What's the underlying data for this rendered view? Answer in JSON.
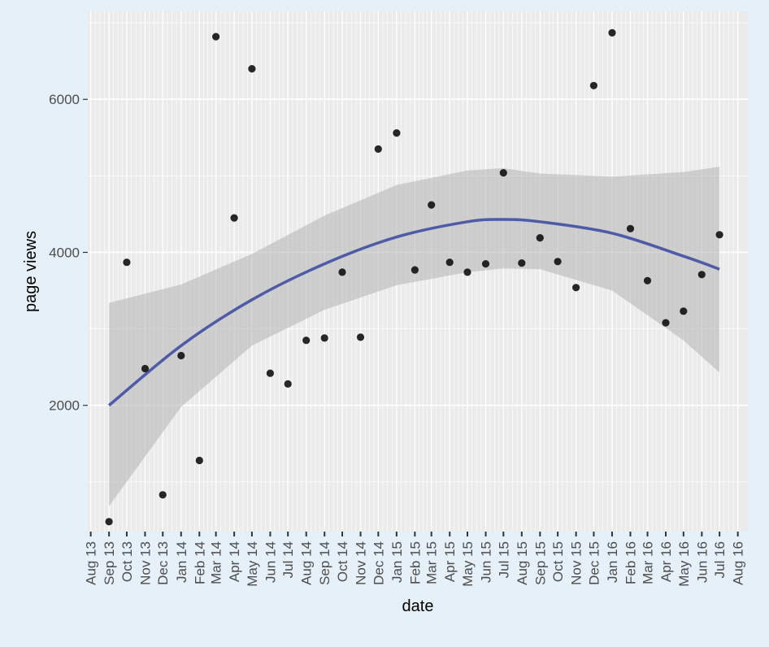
{
  "chart_data": {
    "type": "scatter",
    "title": "",
    "xlabel": "date",
    "ylabel": "page views",
    "x_ticks": [
      "Aug 13",
      "Sep 13",
      "Oct 13",
      "Nov 13",
      "Dec 13",
      "Jan 14",
      "Feb 14",
      "Mar 14",
      "Apr 14",
      "May 14",
      "Jun 14",
      "Jul 14",
      "Aug 14",
      "Sep 14",
      "Oct 14",
      "Nov 14",
      "Dec 14",
      "Jan 15",
      "Feb 15",
      "Mar 15",
      "Apr 15",
      "May 15",
      "Jun 15",
      "Jul 15",
      "Aug 15",
      "Sep 15",
      "Oct 15",
      "Nov 15",
      "Dec 15",
      "Jan 16",
      "Feb 16",
      "Mar 16",
      "Apr 16",
      "May 16",
      "Jun 16",
      "Jul 16",
      "Aug 16"
    ],
    "x_tick_dates": [
      "2013-08-01",
      "2013-09-01",
      "2013-10-01",
      "2013-11-01",
      "2013-12-01",
      "2014-01-01",
      "2014-02-01",
      "2014-03-01",
      "2014-04-01",
      "2014-05-01",
      "2014-06-01",
      "2014-07-01",
      "2014-08-01",
      "2014-09-01",
      "2014-10-01",
      "2014-11-01",
      "2014-12-01",
      "2015-01-01",
      "2015-02-01",
      "2015-03-01",
      "2015-04-01",
      "2015-05-01",
      "2015-06-01",
      "2015-07-01",
      "2015-08-01",
      "2015-09-01",
      "2015-10-01",
      "2015-11-01",
      "2015-12-01",
      "2016-01-01",
      "2016-02-01",
      "2016-03-01",
      "2016-04-01",
      "2016-05-01",
      "2016-06-01",
      "2016-07-01",
      "2016-08-01"
    ],
    "y_ticks": [
      2000,
      4000,
      6000
    ],
    "xlim": [
      "2013-07-27",
      "2016-08-18"
    ],
    "ylim": [
      350,
      7150
    ],
    "grid": true,
    "points": [
      {
        "x": "2013-09-01",
        "y": 480
      },
      {
        "x": "2013-10-01",
        "y": 3870
      },
      {
        "x": "2013-11-01",
        "y": 2480
      },
      {
        "x": "2013-12-01",
        "y": 830
      },
      {
        "x": "2014-01-01",
        "y": 2650
      },
      {
        "x": "2014-02-01",
        "y": 1280
      },
      {
        "x": "2014-03-01",
        "y": 6820
      },
      {
        "x": "2014-04-01",
        "y": 4450
      },
      {
        "x": "2014-05-01",
        "y": 6400
      },
      {
        "x": "2014-06-01",
        "y": 2420
      },
      {
        "x": "2014-07-01",
        "y": 2280
      },
      {
        "x": "2014-08-01",
        "y": 2850
      },
      {
        "x": "2014-09-01",
        "y": 2880
      },
      {
        "x": "2014-10-01",
        "y": 3740
      },
      {
        "x": "2014-11-01",
        "y": 2890
      },
      {
        "x": "2014-12-01",
        "y": 5350
      },
      {
        "x": "2015-01-01",
        "y": 5560
      },
      {
        "x": "2015-02-01",
        "y": 3770
      },
      {
        "x": "2015-03-01",
        "y": 4620
      },
      {
        "x": "2015-04-01",
        "y": 3870
      },
      {
        "x": "2015-05-01",
        "y": 3740
      },
      {
        "x": "2015-06-01",
        "y": 3850
      },
      {
        "x": "2015-07-01",
        "y": 5040
      },
      {
        "x": "2015-08-01",
        "y": 3860
      },
      {
        "x": "2015-09-01",
        "y": 4190
      },
      {
        "x": "2015-10-01",
        "y": 3880
      },
      {
        "x": "2015-11-01",
        "y": 3540
      },
      {
        "x": "2015-12-01",
        "y": 6180
      },
      {
        "x": "2016-01-01",
        "y": 6870
      },
      {
        "x": "2016-02-01",
        "y": 4310
      },
      {
        "x": "2016-03-01",
        "y": 3630
      },
      {
        "x": "2016-04-01",
        "y": 3080
      },
      {
        "x": "2016-05-01",
        "y": 3230
      },
      {
        "x": "2016-06-01",
        "y": 3710
      },
      {
        "x": "2016-07-01",
        "y": 4230
      }
    ],
    "smooth": {
      "method": "loess-like quadratic fit",
      "x": [
        "2013-09-01",
        "2014-01-01",
        "2014-05-01",
        "2014-09-01",
        "2015-01-01",
        "2015-05-01",
        "2015-07-01",
        "2015-09-01",
        "2016-01-01",
        "2016-05-01",
        "2016-07-01"
      ],
      "fit": [
        2000,
        2780,
        3380,
        3850,
        4200,
        4400,
        4430,
        4400,
        4250,
        3950,
        3780
      ],
      "lower": [
        680,
        1980,
        2780,
        3250,
        3570,
        3740,
        3790,
        3780,
        3500,
        2850,
        2430
      ],
      "upper": [
        3340,
        3580,
        3980,
        4480,
        4880,
        5070,
        5100,
        5030,
        4990,
        5050,
        5120
      ],
      "line_color": "#4e5ba6",
      "band_color": "#b3b3b3"
    },
    "colors": {
      "panel": "#ebebeb",
      "grid": "#ffffff",
      "point": "#111111"
    }
  }
}
